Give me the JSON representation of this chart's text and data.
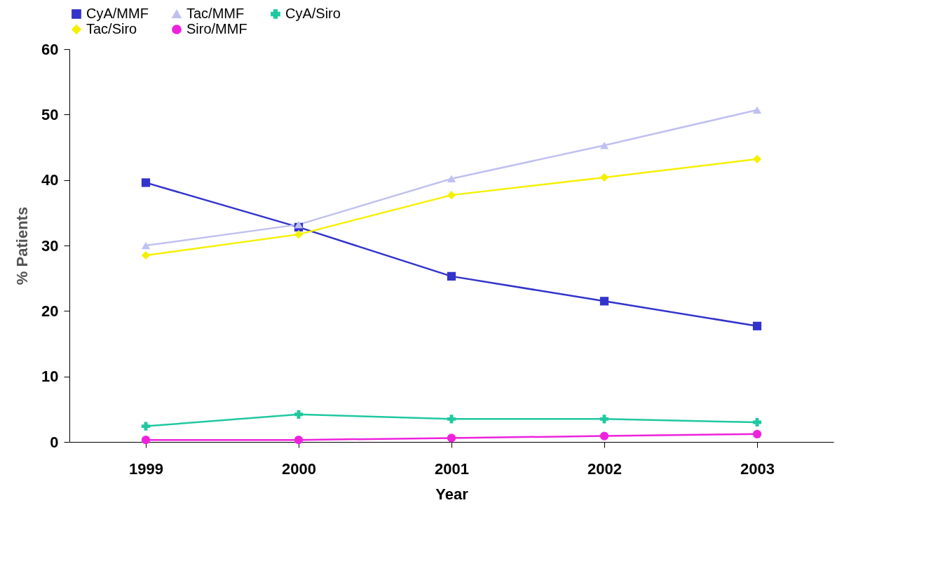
{
  "chart_data": {
    "type": "line",
    "xlabel": "Year",
    "ylabel": "% Patients",
    "categories": [
      "1999",
      "2000",
      "2001",
      "2002",
      "2003"
    ],
    "series": [
      {
        "name": "CyA/MMF",
        "color": "#3333cc",
        "marker": "square",
        "values": [
          39.6,
          32.8,
          25.3,
          21.5,
          17.7
        ]
      },
      {
        "name": "Tac/MMF",
        "color": "#c0c0f0",
        "marker": "triangle",
        "values": [
          30.0,
          33.2,
          40.2,
          45.3,
          50.7
        ]
      },
      {
        "name": "CyA/Siro",
        "color": "#20c8a0",
        "marker": "cross",
        "values": [
          2.4,
          4.2,
          3.5,
          3.5,
          3.0
        ]
      },
      {
        "name": "Tac/Siro",
        "color": "#f5f000",
        "marker": "diamond",
        "values": [
          28.5,
          31.7,
          37.7,
          40.4,
          43.2
        ]
      },
      {
        "name": "Siro/MMF",
        "color": "#ee22dd",
        "marker": "circle",
        "values": [
          0.3,
          0.3,
          0.6,
          0.9,
          1.2
        ]
      }
    ],
    "ylim": [
      0,
      60
    ],
    "yticks": [
      0,
      10,
      20,
      30,
      40,
      50,
      60
    ],
    "grid": false,
    "legend": "top"
  }
}
